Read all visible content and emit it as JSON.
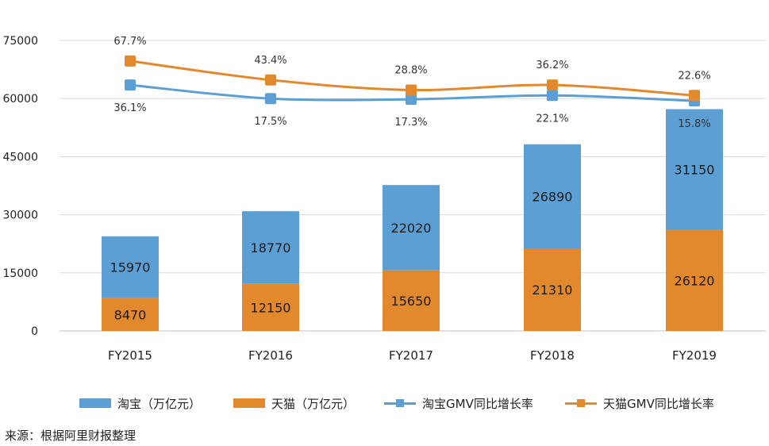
{
  "chart_data": {
    "type": "bar+line",
    "categories": [
      "FY2015",
      "FY2016",
      "FY2017",
      "FY2018",
      "FY2019"
    ],
    "y_ticks": [
      "0",
      "15000",
      "30000",
      "45000",
      "60000",
      "75000"
    ],
    "ylim": [
      0,
      75000
    ],
    "bar_series": [
      {
        "name": "天猫（万亿元）",
        "color": "#E3892D",
        "values": [
          8470,
          12150,
          15650,
          21310,
          26120
        ]
      },
      {
        "name": "淘宝（万亿元）",
        "color": "#5B9FD4",
        "values": [
          15970,
          18770,
          22020,
          26890,
          31150
        ]
      }
    ],
    "line_series": [
      {
        "name": "淘宝GMV同比增长率",
        "color": "#5B9FD4",
        "labels": [
          "36.1%",
          "17.5%",
          "17.3%",
          "22.1%",
          "15.8%"
        ],
        "plot_values": [
          63500,
          60000,
          59800,
          60800,
          59400
        ]
      },
      {
        "name": "天猫GMV同比增长率",
        "color": "#E3892D",
        "labels": [
          "67.7%",
          "43.4%",
          "28.8%",
          "36.2%",
          "22.6%"
        ],
        "plot_values": [
          69700,
          64800,
          62200,
          63500,
          60800
        ]
      }
    ],
    "grid": true,
    "legend_position": "bottom"
  },
  "source": "来源：根据阿里财报整理"
}
